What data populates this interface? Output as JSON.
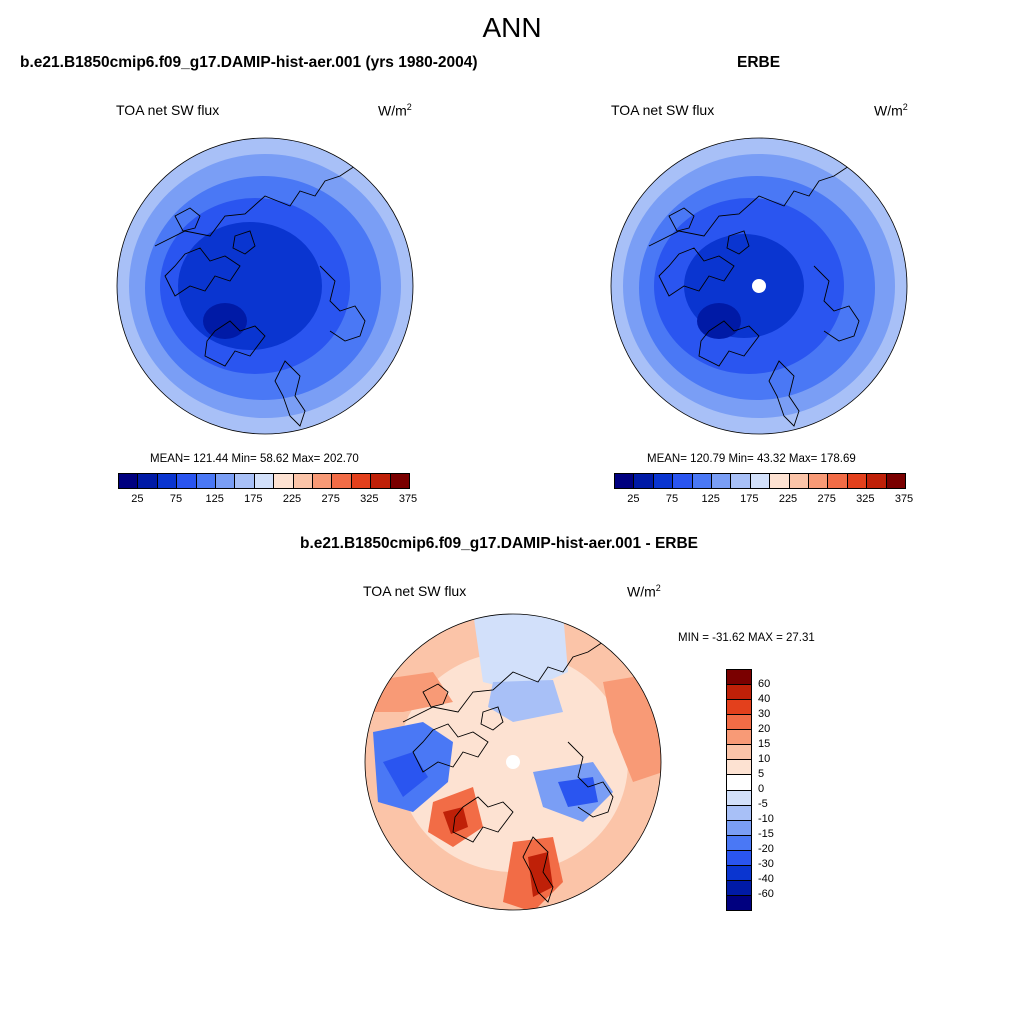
{
  "main_title": "ANN",
  "panels": [
    {
      "title": "b.e21.B1850cmip6.f09_g17.DAMIP-hist-aer.001 (yrs 1980-2004)",
      "variable": "TOA net SW flux",
      "units": "W/m",
      "units_exp": "2",
      "stats": "MEAN= 121.44  Min=  58.62  Max= 202.70",
      "pole_hole": false
    },
    {
      "title": "ERBE",
      "variable": "TOA net SW flux",
      "units": "W/m",
      "units_exp": "2",
      "stats": "MEAN= 120.79  Min=  43.32  Max= 178.69",
      "pole_hole": true
    },
    {
      "title": "b.e21.B1850cmip6.f09_g17.DAMIP-hist-aer.001 - ERBE",
      "variable": "TOA net SW flux",
      "units": "W/m",
      "units_exp": "2",
      "stats": "MIN = -31.62 MAX =  27.31",
      "pole_hole": true
    }
  ],
  "colorbar_abs": {
    "colors": [
      "#00007f",
      "#001aa6",
      "#0a35d0",
      "#2a55f0",
      "#4a78f5",
      "#7a9ef5",
      "#a8c0f7",
      "#d2e0fa",
      "#fde2d2",
      "#fbc4a8",
      "#f89a76",
      "#f26c46",
      "#e3401c",
      "#bf2008",
      "#7a0000"
    ],
    "tick_labels": [
      "25",
      "75",
      "125",
      "175",
      "225",
      "275",
      "325",
      "375"
    ]
  },
  "colorbar_diff": {
    "colors": [
      "#00007f",
      "#001aa6",
      "#0a35d0",
      "#2a55f0",
      "#4a78f5",
      "#7a9ef5",
      "#a8c0f7",
      "#d2e0fa",
      "#ffffff",
      "#fde2d2",
      "#fbc4a8",
      "#f89a76",
      "#f26c46",
      "#e3401c",
      "#bf2008",
      "#7a0000"
    ],
    "tick_labels": [
      "-60",
      "-40",
      "-30",
      "-20",
      "-15",
      "-10",
      "-5",
      "0",
      "5",
      "10",
      "15",
      "20",
      "30",
      "40",
      "60"
    ]
  }
}
